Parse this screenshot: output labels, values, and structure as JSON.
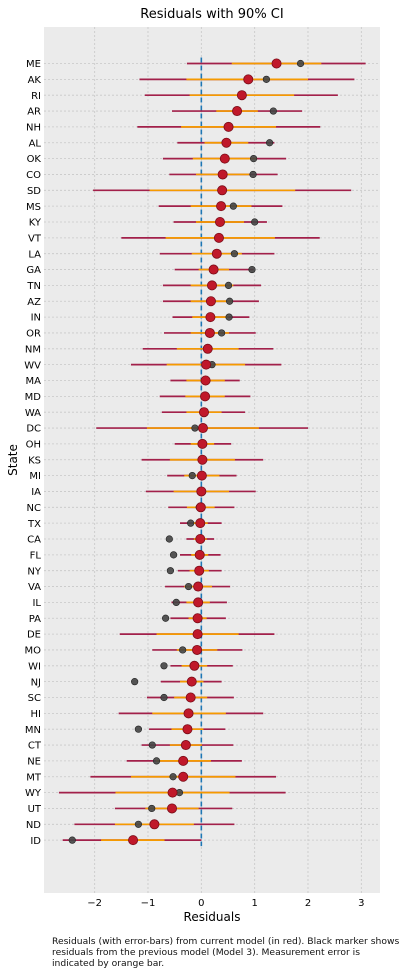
{
  "caption": "Residuals (with error-bars) from current model (in red). Black marker shows residuals from the previous model (Model 3). Measurement error is indicated by orange bar.",
  "colors": {
    "background": "#ebebeb",
    "grid": "#c8c8c8",
    "ci_line": "#a2204a",
    "error_bar": "#f59a00",
    "current_marker": "#c0182a",
    "previous_marker": "#444444",
    "zero_line": "#1f77b4"
  },
  "chart_data": {
    "type": "scatter",
    "title": "Residuals with 90% CI",
    "xlabel": "Residuals",
    "ylabel": "State",
    "xlim": [
      -2.95,
      3.35
    ],
    "xticks": [
      -2,
      -1,
      0,
      1,
      2,
      3
    ],
    "xtick_labels": [
      "−2",
      "−1",
      "0",
      "1",
      "2",
      "3"
    ],
    "grid": true,
    "reference_line_x": 0,
    "series": [
      {
        "name": "current model"
      },
      {
        "name": "previous model (Model 3)"
      },
      {
        "name": "measurement error"
      }
    ],
    "states": [
      "ME",
      "AK",
      "RI",
      "AR",
      "NH",
      "AL",
      "OK",
      "CO",
      "SD",
      "MS",
      "KY",
      "VT",
      "LA",
      "GA",
      "TN",
      "AZ",
      "IN",
      "OR",
      "NM",
      "WV",
      "MA",
      "MD",
      "WA",
      "DC",
      "OH",
      "KS",
      "MI",
      "IA",
      "NC",
      "TX",
      "CA",
      "FL",
      "NY",
      "VA",
      "IL",
      "PA",
      "DE",
      "MO",
      "WI",
      "NJ",
      "SC",
      "HI",
      "MN",
      "CT",
      "NE",
      "MT",
      "WY",
      "UT",
      "ND",
      "ID"
    ],
    "current": [
      1.41,
      0.88,
      0.76,
      0.67,
      0.51,
      0.47,
      0.44,
      0.4,
      0.39,
      0.37,
      0.35,
      0.33,
      0.29,
      0.23,
      0.2,
      0.18,
      0.17,
      0.16,
      0.12,
      0.09,
      0.08,
      0.07,
      0.05,
      0.03,
      0.02,
      0.02,
      0.01,
      0.0,
      -0.01,
      -0.02,
      -0.02,
      -0.03,
      -0.04,
      -0.06,
      -0.06,
      -0.07,
      -0.07,
      -0.08,
      -0.13,
      -0.18,
      -0.2,
      -0.24,
      -0.26,
      -0.29,
      -0.34,
      -0.34,
      -0.54,
      -0.55,
      -0.88,
      -1.28
    ],
    "ci_low": [
      -0.27,
      -1.16,
      -1.06,
      -0.55,
      -1.2,
      -0.45,
      -0.72,
      -0.6,
      -2.03,
      -0.8,
      -0.52,
      -1.5,
      -0.78,
      -0.5,
      -0.72,
      -0.72,
      -0.54,
      -0.7,
      -1.1,
      -1.32,
      -0.58,
      -0.78,
      -0.74,
      -1.97,
      -0.5,
      -1.12,
      -0.64,
      -1.04,
      -0.62,
      -0.4,
      -0.28,
      -0.4,
      -0.44,
      -0.68,
      -0.56,
      -0.58,
      -1.53,
      -0.92,
      -0.58,
      -0.76,
      -1.02,
      -1.55,
      -0.98,
      -1.12,
      -1.4,
      -2.08,
      -2.67,
      -1.62,
      -2.38,
      -2.6
    ],
    "ci_high": [
      3.08,
      2.87,
      2.56,
      1.89,
      2.23,
      1.37,
      1.59,
      1.43,
      2.81,
      1.52,
      1.23,
      2.22,
      1.37,
      0.98,
      1.12,
      1.08,
      0.9,
      1.02,
      1.35,
      1.5,
      0.72,
      0.92,
      0.82,
      2.0,
      0.56,
      1.16,
      0.66,
      1.02,
      0.62,
      0.38,
      0.24,
      0.36,
      0.38,
      0.54,
      0.48,
      0.46,
      1.37,
      0.77,
      0.59,
      0.38,
      0.61,
      1.16,
      0.45,
      0.6,
      0.76,
      1.4,
      1.58,
      0.58,
      0.62,
      0.0
    ],
    "err_low": [
      0.57,
      -0.28,
      -0.22,
      0.28,
      -0.38,
      0.06,
      -0.16,
      -0.1,
      -0.97,
      -0.2,
      -0.1,
      -0.67,
      -0.18,
      -0.05,
      -0.2,
      -0.2,
      -0.17,
      -0.2,
      -0.46,
      -0.65,
      -0.28,
      -0.3,
      -0.28,
      -1.02,
      -0.2,
      -0.59,
      -0.32,
      -0.52,
      -0.27,
      -0.16,
      -0.14,
      -0.19,
      -0.22,
      -0.32,
      -0.28,
      -0.24,
      -0.84,
      -0.46,
      -0.37,
      -0.4,
      -0.51,
      -0.92,
      -0.56,
      -0.59,
      -0.85,
      -1.32,
      -1.61,
      -1.05,
      -1.62,
      -1.88
    ],
    "err_high": [
      2.25,
      2.0,
      1.74,
      1.06,
      1.4,
      0.88,
      1.04,
      0.9,
      1.76,
      0.94,
      0.8,
      1.38,
      0.76,
      0.52,
      0.6,
      0.57,
      0.51,
      0.52,
      0.7,
      0.82,
      0.44,
      0.44,
      0.38,
      1.08,
      0.24,
      0.63,
      0.34,
      0.52,
      0.25,
      0.12,
      0.1,
      0.13,
      0.14,
      0.2,
      0.16,
      0.1,
      0.7,
      0.3,
      0.11,
      0.04,
      0.11,
      0.46,
      0.04,
      0.01,
      0.18,
      0.64,
      0.53,
      -0.05,
      -0.14,
      -0.69
    ],
    "previous": [
      1.86,
      1.22,
      0.77,
      1.35,
      0.51,
      1.28,
      0.98,
      0.97,
      0.41,
      0.6,
      1.0,
      0.34,
      0.62,
      0.95,
      0.51,
      0.53,
      0.52,
      0.38,
      0.13,
      0.2,
      0.09,
      0.07,
      0.07,
      -0.12,
      0.02,
      0.02,
      -0.17,
      0.0,
      -0.04,
      -0.2,
      -0.6,
      -0.52,
      -0.58,
      -0.24,
      -0.47,
      -0.67,
      -0.08,
      -0.35,
      -0.7,
      -1.25,
      -0.7,
      -0.22,
      -1.18,
      -0.92,
      -0.84,
      -0.53,
      -0.41,
      -0.93,
      -1.18,
      -2.42
    ]
  }
}
